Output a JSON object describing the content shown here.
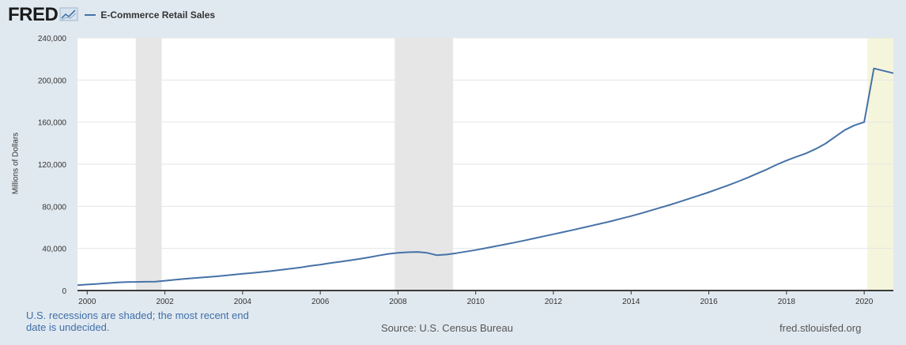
{
  "header": {
    "logo": "FRED",
    "legend_label": "E-Commerce Retail Sales",
    "line_color": "#4572a7"
  },
  "footer": {
    "recession_note": "U.S. recessions are shaded; the most recent end date is undecided.",
    "source": "Source: U.S. Census Bureau",
    "site": "fred.stlouisfed.org"
  },
  "chart_data": {
    "type": "line",
    "title": "",
    "xlabel": "",
    "ylabel": "Millions of Dollars",
    "xlim": [
      1999.75,
      2020.75
    ],
    "ylim": [
      0,
      240000
    ],
    "x_ticks": [
      2000,
      2002,
      2004,
      2006,
      2008,
      2010,
      2012,
      2014,
      2016,
      2018,
      2020
    ],
    "y_ticks": [
      0,
      40000,
      80000,
      120000,
      160000,
      200000,
      240000
    ],
    "y_tick_labels": [
      "0",
      "40,000",
      "80,000",
      "120,000",
      "160,000",
      "200,000",
      "240,000"
    ],
    "grid": true,
    "recessions": [
      {
        "start": 2001.25,
        "end": 2001.917,
        "color": "#e6e6e6"
      },
      {
        "start": 2007.917,
        "end": 2009.417,
        "color": "#e6e6e6"
      },
      {
        "start": 2020.083,
        "end": 2020.75,
        "color": "#f5f5dc"
      }
    ],
    "series": [
      {
        "name": "E-Commerce Retail Sales",
        "color": "#4572a7",
        "points": [
          [
            1999.75,
            5000
          ],
          [
            2000.0,
            5700
          ],
          [
            2000.25,
            6300
          ],
          [
            2000.5,
            7000
          ],
          [
            2000.75,
            7600
          ],
          [
            2001.0,
            8000
          ],
          [
            2001.25,
            8200
          ],
          [
            2001.5,
            8300
          ],
          [
            2001.75,
            8500
          ],
          [
            2002.0,
            9300
          ],
          [
            2002.25,
            10200
          ],
          [
            2002.5,
            11000
          ],
          [
            2002.75,
            11800
          ],
          [
            2003.0,
            12500
          ],
          [
            2003.25,
            13200
          ],
          [
            2003.5,
            14000
          ],
          [
            2003.75,
            15000
          ],
          [
            2004.0,
            15900
          ],
          [
            2004.25,
            16700
          ],
          [
            2004.5,
            17600
          ],
          [
            2004.75,
            18600
          ],
          [
            2005.0,
            19700
          ],
          [
            2005.25,
            20800
          ],
          [
            2005.5,
            22000
          ],
          [
            2005.75,
            23400
          ],
          [
            2006.0,
            24600
          ],
          [
            2006.25,
            26000
          ],
          [
            2006.5,
            27300
          ],
          [
            2006.75,
            28600
          ],
          [
            2007.0,
            30000
          ],
          [
            2007.25,
            31500
          ],
          [
            2007.5,
            33200
          ],
          [
            2007.75,
            34800
          ],
          [
            2008.0,
            35800
          ],
          [
            2008.25,
            36400
          ],
          [
            2008.5,
            36700
          ],
          [
            2008.75,
            35800
          ],
          [
            2009.0,
            33500
          ],
          [
            2009.25,
            34200
          ],
          [
            2009.5,
            35500
          ],
          [
            2009.75,
            37000
          ],
          [
            2010.0,
            38500
          ],
          [
            2010.25,
            40200
          ],
          [
            2010.5,
            42000
          ],
          [
            2010.75,
            43800
          ],
          [
            2011.0,
            45600
          ],
          [
            2011.25,
            47500
          ],
          [
            2011.5,
            49500
          ],
          [
            2011.75,
            51500
          ],
          [
            2012.0,
            53500
          ],
          [
            2012.25,
            55500
          ],
          [
            2012.5,
            57500
          ],
          [
            2012.75,
            59600
          ],
          [
            2013.0,
            61700
          ],
          [
            2013.25,
            63800
          ],
          [
            2013.5,
            66000
          ],
          [
            2013.75,
            68400
          ],
          [
            2014.0,
            70700
          ],
          [
            2014.25,
            73300
          ],
          [
            2014.5,
            76000
          ],
          [
            2014.75,
            78700
          ],
          [
            2015.0,
            81400
          ],
          [
            2015.25,
            84300
          ],
          [
            2015.5,
            87300
          ],
          [
            2015.75,
            90300
          ],
          [
            2016.0,
            93400
          ],
          [
            2016.25,
            96700
          ],
          [
            2016.5,
            100000
          ],
          [
            2016.75,
            103500
          ],
          [
            2017.0,
            107200
          ],
          [
            2017.25,
            111200
          ],
          [
            2017.5,
            115200
          ],
          [
            2017.75,
            119600
          ],
          [
            2018.0,
            123500
          ],
          [
            2018.25,
            127000
          ],
          [
            2018.5,
            130300
          ],
          [
            2018.75,
            134500
          ],
          [
            2019.0,
            139500
          ],
          [
            2019.25,
            146000
          ],
          [
            2019.5,
            152500
          ],
          [
            2019.75,
            157000
          ],
          [
            2020.0,
            160000
          ],
          [
            2020.25,
            211000
          ],
          [
            2020.75,
            206500
          ]
        ]
      }
    ]
  }
}
